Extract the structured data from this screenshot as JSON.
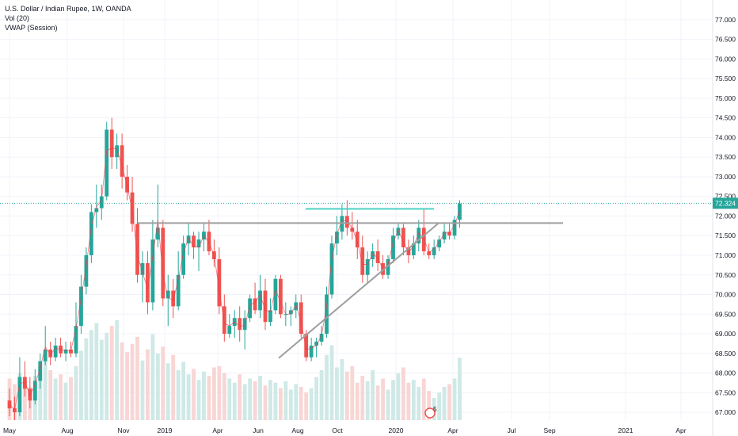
{
  "legend": {
    "title": "U.S. Dollar / Indian Rupee, 1W, OANDA",
    "volume": "Vol (20)",
    "vwap": "VWAP (Session)"
  },
  "colors": {
    "up": "#26a69a",
    "down": "#ef5350",
    "vol_up": "#cfe9e6",
    "vol_down": "#f8d6d5",
    "grid": "#f0f3fa",
    "vwap": "#f23645",
    "trendline": "#9e9e9e",
    "resistance": "#9e9e9e",
    "short_line": "#4dd0c4",
    "price_badge": "#26a69a",
    "price_line": "#26a69a"
  },
  "price_badge": "72.324",
  "time_marker": "5",
  "chart_data": {
    "type": "candlestick",
    "title": "U.S. Dollar / Indian Rupee, 1W, OANDA",
    "ylim": [
      66.8,
      77.3
    ],
    "xlabels": [
      "May",
      "Aug",
      "Nov",
      "2019",
      "Apr",
      "Jun",
      "Aug",
      "Oct",
      "2020",
      "Apr",
      "Jul",
      "Sep",
      "2021",
      "Apr"
    ],
    "yticks": [
      "67.000",
      "67.500",
      "68.000",
      "68.500",
      "69.000",
      "69.500",
      "70.000",
      "70.500",
      "71.000",
      "71.500",
      "72.000",
      "72.500",
      "73.000",
      "73.500",
      "74.000",
      "74.500",
      "75.000",
      "75.500",
      "76.000",
      "76.500",
      "77.000"
    ],
    "current_price": 72.324,
    "first_week": "2018-05-07",
    "candles": [
      {
        "o": 67.3,
        "h": 67.6,
        "l": 66.9,
        "c": 67.1
      },
      {
        "o": 67.1,
        "h": 67.4,
        "l": 66.8,
        "c": 67.0
      },
      {
        "o": 67.0,
        "h": 68.4,
        "l": 66.9,
        "c": 67.9
      },
      {
        "o": 67.9,
        "h": 68.3,
        "l": 67.4,
        "c": 67.6
      },
      {
        "o": 67.6,
        "h": 67.9,
        "l": 67.1,
        "c": 67.3
      },
      {
        "o": 67.3,
        "h": 68.1,
        "l": 67.2,
        "c": 67.8
      },
      {
        "o": 67.8,
        "h": 68.5,
        "l": 67.6,
        "c": 68.3
      },
      {
        "o": 68.3,
        "h": 69.2,
        "l": 68.2,
        "c": 68.6
      },
      {
        "o": 68.6,
        "h": 68.8,
        "l": 68.2,
        "c": 68.4
      },
      {
        "o": 68.4,
        "h": 68.9,
        "l": 68.3,
        "c": 68.7
      },
      {
        "o": 68.7,
        "h": 68.9,
        "l": 68.4,
        "c": 68.5
      },
      {
        "o": 68.5,
        "h": 68.8,
        "l": 68.3,
        "c": 68.6
      },
      {
        "o": 68.6,
        "h": 68.8,
        "l": 68.4,
        "c": 68.5
      },
      {
        "o": 68.5,
        "h": 69.8,
        "l": 68.4,
        "c": 69.2
      },
      {
        "o": 69.2,
        "h": 70.5,
        "l": 69.0,
        "c": 70.2
      },
      {
        "o": 70.2,
        "h": 71.2,
        "l": 70.0,
        "c": 71.0
      },
      {
        "o": 71.0,
        "h": 72.3,
        "l": 70.8,
        "c": 72.1
      },
      {
        "o": 72.1,
        "h": 72.8,
        "l": 71.7,
        "c": 72.2
      },
      {
        "o": 72.2,
        "h": 72.8,
        "l": 71.9,
        "c": 72.5
      },
      {
        "o": 72.5,
        "h": 74.4,
        "l": 72.4,
        "c": 74.2
      },
      {
        "o": 74.2,
        "h": 74.5,
        "l": 73.2,
        "c": 73.5
      },
      {
        "o": 73.5,
        "h": 74.1,
        "l": 73.2,
        "c": 73.8
      },
      {
        "o": 73.8,
        "h": 74.1,
        "l": 72.7,
        "c": 73.0
      },
      {
        "o": 73.0,
        "h": 73.3,
        "l": 72.4,
        "c": 72.6
      },
      {
        "o": 72.6,
        "h": 73.0,
        "l": 71.6,
        "c": 71.8
      },
      {
        "o": 71.8,
        "h": 72.2,
        "l": 70.3,
        "c": 70.5
      },
      {
        "o": 70.5,
        "h": 71.1,
        "l": 69.8,
        "c": 70.8
      },
      {
        "o": 70.8,
        "h": 71.1,
        "l": 69.5,
        "c": 69.8
      },
      {
        "o": 69.8,
        "h": 71.9,
        "l": 69.6,
        "c": 71.4
      },
      {
        "o": 71.4,
        "h": 72.8,
        "l": 71.2,
        "c": 71.7
      },
      {
        "o": 71.7,
        "h": 71.9,
        "l": 69.7,
        "c": 69.9
      },
      {
        "o": 69.9,
        "h": 70.5,
        "l": 69.2,
        "c": 70.1
      },
      {
        "o": 70.1,
        "h": 70.4,
        "l": 69.4,
        "c": 69.7
      },
      {
        "o": 69.7,
        "h": 71.1,
        "l": 69.6,
        "c": 70.5
      },
      {
        "o": 70.5,
        "h": 71.5,
        "l": 70.4,
        "c": 71.3
      },
      {
        "o": 71.3,
        "h": 71.8,
        "l": 71.0,
        "c": 71.5
      },
      {
        "o": 71.5,
        "h": 71.6,
        "l": 70.9,
        "c": 71.2
      },
      {
        "o": 71.2,
        "h": 71.6,
        "l": 70.6,
        "c": 71.4
      },
      {
        "o": 71.4,
        "h": 71.8,
        "l": 71.1,
        "c": 71.6
      },
      {
        "o": 71.6,
        "h": 71.9,
        "l": 71.0,
        "c": 71.1
      },
      {
        "o": 71.1,
        "h": 71.4,
        "l": 70.7,
        "c": 70.9
      },
      {
        "o": 70.9,
        "h": 71.2,
        "l": 69.5,
        "c": 69.7
      },
      {
        "o": 69.7,
        "h": 70.0,
        "l": 68.8,
        "c": 69.0
      },
      {
        "o": 69.0,
        "h": 69.5,
        "l": 68.9,
        "c": 69.2
      },
      {
        "o": 69.2,
        "h": 69.6,
        "l": 68.9,
        "c": 69.4
      },
      {
        "o": 69.4,
        "h": 69.7,
        "l": 68.8,
        "c": 69.1
      },
      {
        "o": 69.1,
        "h": 69.6,
        "l": 68.6,
        "c": 69.4
      },
      {
        "o": 69.4,
        "h": 70.0,
        "l": 69.3,
        "c": 69.9
      },
      {
        "o": 69.9,
        "h": 70.3,
        "l": 69.5,
        "c": 69.6
      },
      {
        "o": 69.6,
        "h": 70.5,
        "l": 69.4,
        "c": 70.1
      },
      {
        "o": 70.1,
        "h": 70.4,
        "l": 69.1,
        "c": 69.3
      },
      {
        "o": 69.3,
        "h": 69.9,
        "l": 69.2,
        "c": 69.6
      },
      {
        "o": 69.6,
        "h": 70.5,
        "l": 69.5,
        "c": 70.4
      },
      {
        "o": 70.4,
        "h": 70.5,
        "l": 69.4,
        "c": 69.5
      },
      {
        "o": 69.5,
        "h": 69.8,
        "l": 69.2,
        "c": 69.5
      },
      {
        "o": 69.5,
        "h": 69.7,
        "l": 69.2,
        "c": 69.6
      },
      {
        "o": 69.6,
        "h": 70.0,
        "l": 69.4,
        "c": 69.8
      },
      {
        "o": 69.8,
        "h": 70.0,
        "l": 68.9,
        "c": 69.0
      },
      {
        "o": 69.0,
        "h": 69.1,
        "l": 68.3,
        "c": 68.4
      },
      {
        "o": 68.4,
        "h": 68.9,
        "l": 68.3,
        "c": 68.7
      },
      {
        "o": 68.7,
        "h": 68.9,
        "l": 68.4,
        "c": 68.8
      },
      {
        "o": 68.8,
        "h": 69.2,
        "l": 68.7,
        "c": 69.0
      },
      {
        "o": 69.0,
        "h": 70.2,
        "l": 68.9,
        "c": 70.0
      },
      {
        "o": 70.0,
        "h": 71.5,
        "l": 69.9,
        "c": 71.3
      },
      {
        "o": 71.3,
        "h": 72.0,
        "l": 71.0,
        "c": 71.6
      },
      {
        "o": 71.6,
        "h": 72.3,
        "l": 71.4,
        "c": 72.0
      },
      {
        "o": 72.0,
        "h": 72.4,
        "l": 71.5,
        "c": 71.7
      },
      {
        "o": 71.7,
        "h": 72.1,
        "l": 71.4,
        "c": 71.6
      },
      {
        "o": 71.6,
        "h": 71.9,
        "l": 70.9,
        "c": 71.2
      },
      {
        "o": 71.2,
        "h": 71.5,
        "l": 70.3,
        "c": 70.5
      },
      {
        "o": 70.5,
        "h": 71.1,
        "l": 70.3,
        "c": 70.9
      },
      {
        "o": 70.9,
        "h": 71.3,
        "l": 70.7,
        "c": 71.1
      },
      {
        "o": 71.1,
        "h": 71.4,
        "l": 70.6,
        "c": 70.8
      },
      {
        "o": 70.8,
        "h": 71.0,
        "l": 70.4,
        "c": 70.5
      },
      {
        "o": 70.5,
        "h": 71.0,
        "l": 70.4,
        "c": 70.9
      },
      {
        "o": 70.9,
        "h": 71.7,
        "l": 70.8,
        "c": 71.5
      },
      {
        "o": 71.5,
        "h": 71.8,
        "l": 71.4,
        "c": 71.7
      },
      {
        "o": 71.7,
        "h": 71.8,
        "l": 71.0,
        "c": 71.2
      },
      {
        "o": 71.2,
        "h": 71.4,
        "l": 70.8,
        "c": 71.0
      },
      {
        "o": 71.0,
        "h": 71.5,
        "l": 70.9,
        "c": 71.3
      },
      {
        "o": 71.3,
        "h": 71.9,
        "l": 71.1,
        "c": 71.7
      },
      {
        "o": 71.7,
        "h": 72.2,
        "l": 71.0,
        "c": 71.1
      },
      {
        "o": 71.1,
        "h": 71.3,
        "l": 70.9,
        "c": 71.0
      },
      {
        "o": 71.0,
        "h": 71.4,
        "l": 70.9,
        "c": 71.2
      },
      {
        "o": 71.2,
        "h": 71.5,
        "l": 71.1,
        "c": 71.4
      },
      {
        "o": 71.4,
        "h": 71.8,
        "l": 71.3,
        "c": 71.6
      },
      {
        "o": 71.6,
        "h": 71.8,
        "l": 71.4,
        "c": 71.5
      },
      {
        "o": 71.5,
        "h": 72.0,
        "l": 71.4,
        "c": 71.9
      },
      {
        "o": 71.9,
        "h": 72.4,
        "l": 71.7,
        "c": 72.32
      }
    ],
    "volumes": [
      3.0,
      2.6,
      3.4,
      2.8,
      2.4,
      3.2,
      3.8,
      4.5,
      3.6,
      3.0,
      3.3,
      2.7,
      3.1,
      3.9,
      5.0,
      5.9,
      6.5,
      7.0,
      5.8,
      6.3,
      6.8,
      7.2,
      5.6,
      4.9,
      5.5,
      6.0,
      4.3,
      5.1,
      6.2,
      4.8,
      5.3,
      4.1,
      4.7,
      3.6,
      4.2,
      3.3,
      3.7,
      2.9,
      3.5,
      3.2,
      3.8,
      3.9,
      3.4,
      3.0,
      2.7,
      3.3,
      2.6,
      3.0,
      2.8,
      3.2,
      2.5,
      2.9,
      2.7,
      2.3,
      2.8,
      2.2,
      2.6,
      2.4,
      2.0,
      2.3,
      3.1,
      3.6,
      4.7,
      5.4,
      3.8,
      4.4,
      3.5,
      3.9,
      2.7,
      3.2,
      2.8,
      3.6,
      2.5,
      3.0,
      2.2,
      2.9,
      3.4,
      3.8,
      2.7,
      2.9,
      2.4,
      3.0,
      2.1,
      1.6,
      2.0,
      2.4,
      2.6,
      3.0,
      4.5
    ]
  }
}
